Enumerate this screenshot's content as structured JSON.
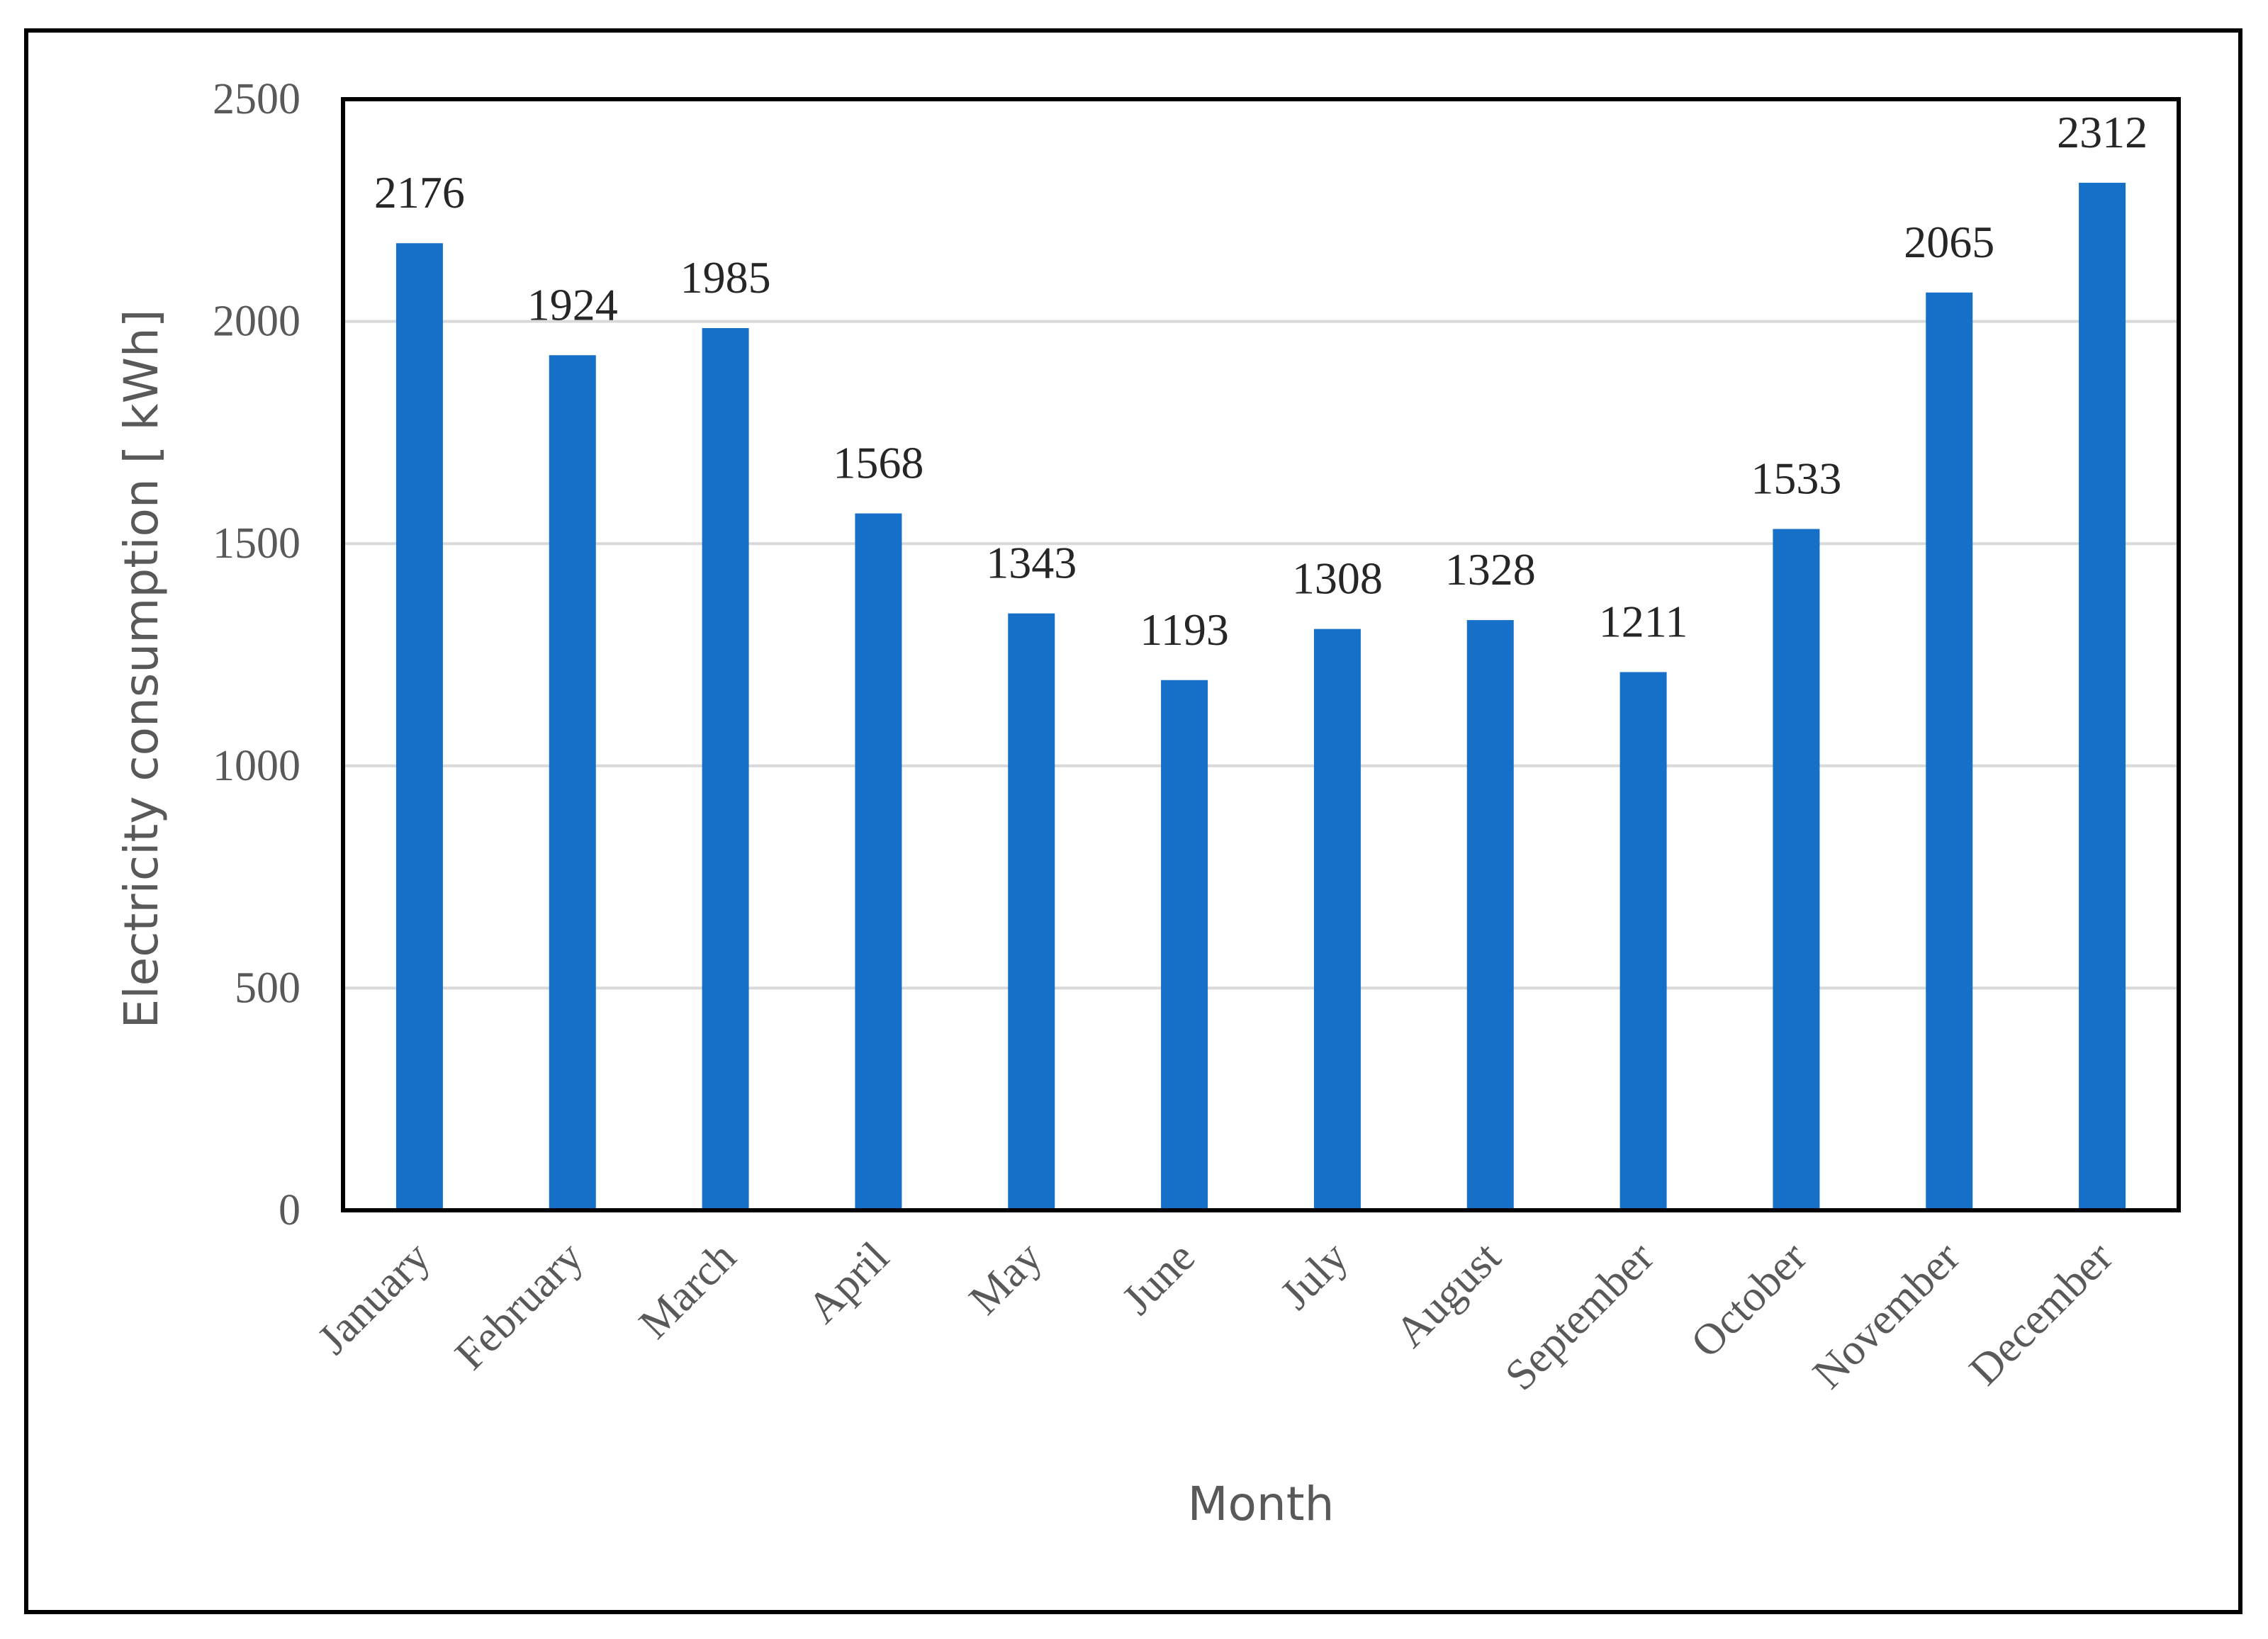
{
  "chart_data": {
    "type": "bar",
    "categories": [
      "January",
      "February",
      "March",
      "April",
      "May",
      "June",
      "July",
      "August",
      "September",
      "October",
      "November",
      "December"
    ],
    "values": [
      2176,
      1924,
      1985,
      1568,
      1343,
      1193,
      1308,
      1328,
      1211,
      1533,
      2065,
      2312
    ],
    "data_labels": [
      "2176",
      "1924",
      "1985",
      "1568",
      "1343",
      "1193",
      "1308",
      "1328",
      "1211",
      "1533",
      "2065",
      "2312"
    ],
    "title": "",
    "xlabel": "Month",
    "ylabel": "Electricity consumption [ kWh]",
    "ylim": [
      0,
      2500
    ],
    "yticks": [
      "0",
      "500",
      "1000",
      "1500",
      "2000",
      "2500"
    ],
    "grid": true,
    "legend": "none",
    "bar_color": "#1770C8",
    "grid_color": "#D9D9D9",
    "frame_color": "#000000"
  }
}
